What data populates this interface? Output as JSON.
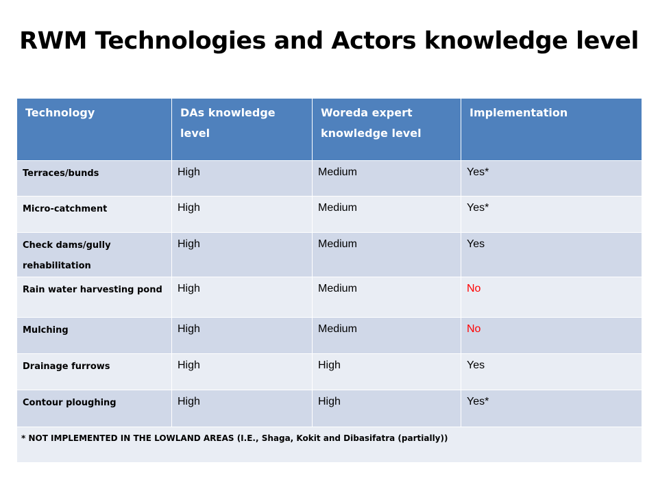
{
  "slide": {
    "title": "RWM Technologies and Actors knowledge level"
  },
  "table": {
    "headers": [
      "Technology",
      "DAs knowledge level",
      "Woreda expert knowledge level",
      "Implementation"
    ],
    "rows": [
      {
        "technology": "Terraces/bunds",
        "das": "High",
        "woreda": "Medium",
        "implementation": "Yes*"
      },
      {
        "technology": "Micro-catchment",
        "das": "High",
        "woreda": "Medium",
        "implementation": "Yes*"
      },
      {
        "technology": "Check dams/gully rehabilitation",
        "das": "High",
        "woreda": "Medium",
        "implementation": "Yes"
      },
      {
        "technology": "Rain water harvesting pond",
        "das": "High",
        "woreda": "Medium",
        "implementation": "No"
      },
      {
        "technology": "Mulching",
        "das": "High",
        "woreda": "Medium",
        "implementation": "No"
      },
      {
        "technology": "Drainage furrows",
        "das": "High",
        "woreda": "High",
        "implementation": "Yes"
      },
      {
        "technology": "Contour ploughing",
        "das": "High",
        "woreda": "High",
        "implementation": "Yes*"
      }
    ],
    "footnote": "* NOT IMPLEMENTED IN THE LOWLAND AREAS (I.E., Shaga, Kokit and Dibasifatra (partially))"
  },
  "colors": {
    "header_bg": "#4f81bd",
    "row_dark": "#d0d8e8",
    "row_light": "#e9edf4",
    "negative_text": "#ff0000"
  }
}
